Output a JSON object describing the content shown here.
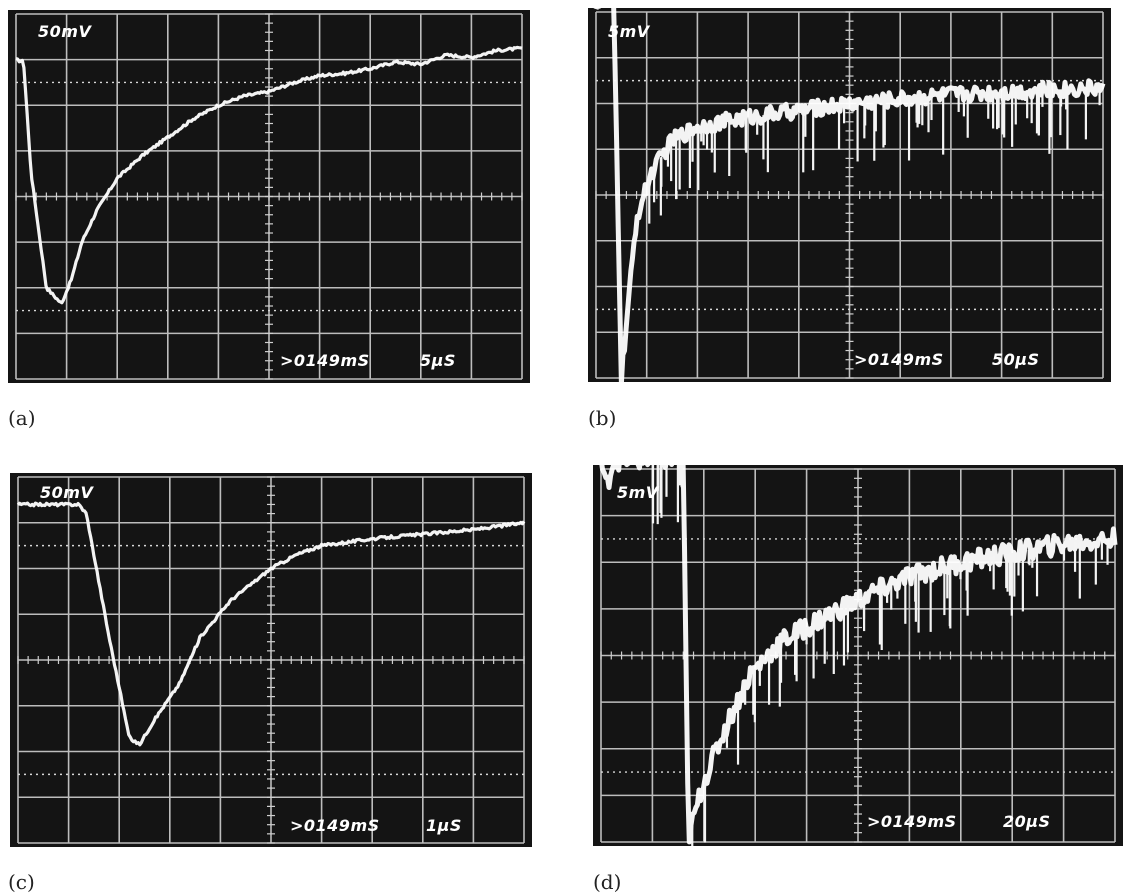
{
  "panels": [
    {
      "caption": "(a)",
      "volts_div": "50mV",
      "trigger": ">0149mS",
      "time_div": "5μS",
      "trace": {
        "baseline_divs": 7.0,
        "points": [
          [
            0.0,
            7.0
          ],
          [
            0.15,
            6.95
          ],
          [
            0.3,
            4.5
          ],
          [
            0.6,
            2.0
          ],
          [
            0.9,
            1.65
          ],
          [
            1.1,
            2.2
          ],
          [
            1.3,
            3.0
          ],
          [
            1.6,
            3.7
          ],
          [
            2.0,
            4.4
          ],
          [
            2.5,
            4.9
          ],
          [
            3.0,
            5.3
          ],
          [
            3.5,
            5.7
          ],
          [
            4.0,
            6.0
          ],
          [
            4.5,
            6.2
          ],
          [
            5.0,
            6.3
          ],
          [
            5.5,
            6.5
          ],
          [
            6.0,
            6.65
          ],
          [
            6.5,
            6.7
          ],
          [
            7.0,
            6.8
          ],
          [
            7.5,
            6.95
          ],
          [
            8.0,
            6.9
          ],
          [
            8.5,
            7.1
          ],
          [
            9.0,
            7.05
          ],
          [
            9.5,
            7.2
          ],
          [
            10.0,
            7.25
          ]
        ],
        "noise": 0.06
      }
    },
    {
      "caption": "(b)",
      "volts_div": "5mV",
      "trigger": ">0149mS",
      "time_div": "50μS",
      "trace": {
        "points": [
          [
            0.0,
            8.2
          ],
          [
            0.35,
            8.2
          ],
          [
            0.5,
            0.0
          ],
          [
            0.8,
            3.5
          ],
          [
            1.1,
            4.5
          ],
          [
            1.5,
            5.2
          ],
          [
            2.0,
            5.5
          ],
          [
            3.0,
            5.7
          ],
          [
            4.0,
            5.85
          ],
          [
            5.0,
            6.0
          ],
          [
            6.0,
            6.1
          ],
          [
            7.0,
            6.2
          ],
          [
            8.0,
            6.25
          ],
          [
            9.0,
            6.3
          ],
          [
            10.0,
            6.35
          ]
        ],
        "noise": 0.35
      }
    },
    {
      "caption": "(c)",
      "volts_div": "50mV",
      "trigger": ">0149mS",
      "time_div": "1μS",
      "trace": {
        "points": [
          [
            0.0,
            7.4
          ],
          [
            1.2,
            7.4
          ],
          [
            1.35,
            7.2
          ],
          [
            1.8,
            4.5
          ],
          [
            2.2,
            2.3
          ],
          [
            2.4,
            2.15
          ],
          [
            2.7,
            2.7
          ],
          [
            3.2,
            3.5
          ],
          [
            3.6,
            4.5
          ],
          [
            4.2,
            5.3
          ],
          [
            5.0,
            6.0
          ],
          [
            5.5,
            6.3
          ],
          [
            6.0,
            6.5
          ],
          [
            7.0,
            6.65
          ],
          [
            8.0,
            6.75
          ],
          [
            9.0,
            6.85
          ],
          [
            10.0,
            7.0
          ]
        ],
        "noise": 0.06
      }
    },
    {
      "caption": "(d)",
      "volts_div": "5mV",
      "trigger": ">0149mS",
      "time_div": "20μS",
      "trace": {
        "points": [
          [
            0.0,
            8.2
          ],
          [
            0.1,
            7.6
          ],
          [
            0.25,
            8.2
          ],
          [
            1.6,
            8.2
          ],
          [
            1.7,
            0.1
          ],
          [
            2.0,
            1.3
          ],
          [
            2.4,
            2.4
          ],
          [
            2.9,
            3.6
          ],
          [
            3.5,
            4.3
          ],
          [
            4.3,
            4.8
          ],
          [
            5.2,
            5.3
          ],
          [
            6.0,
            5.7
          ],
          [
            7.0,
            6.0
          ],
          [
            8.0,
            6.2
          ],
          [
            9.0,
            6.4
          ],
          [
            10.0,
            6.5
          ]
        ],
        "noise": 0.45
      }
    }
  ]
}
